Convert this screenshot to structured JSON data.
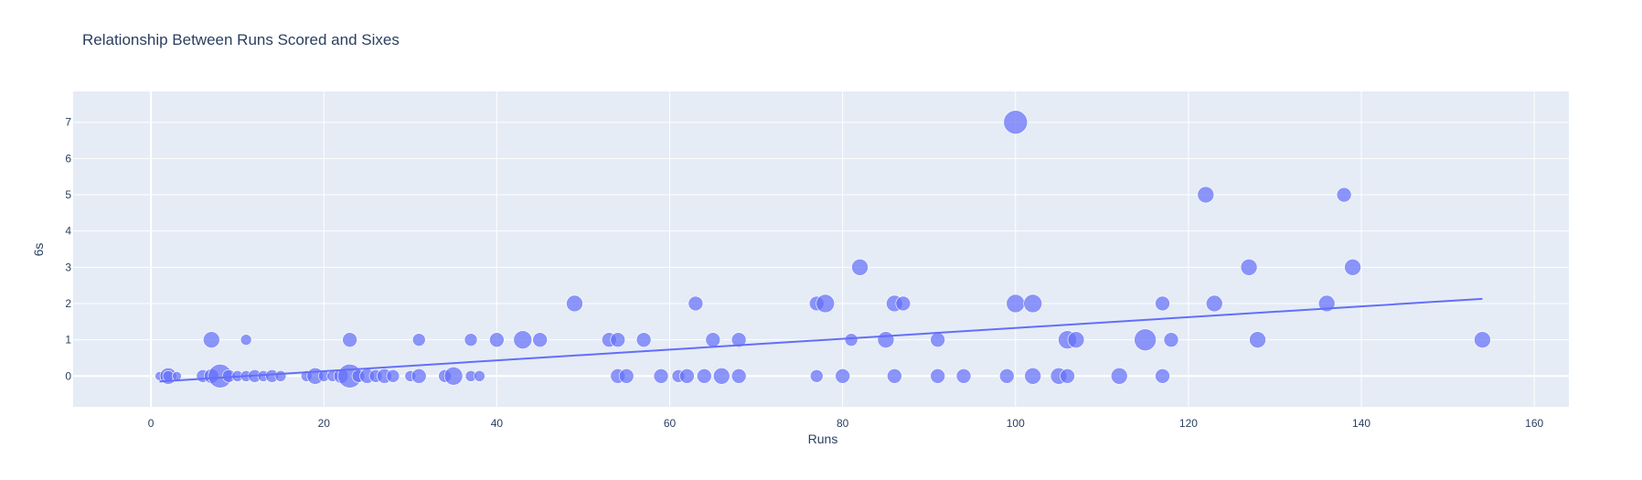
{
  "chart_data": {
    "type": "scatter",
    "title": "Relationship Between Runs Scored and Sixes",
    "xlabel": "Runs",
    "ylabel": "6s",
    "xlim": [
      -9,
      164
    ],
    "ylim": [
      -0.85,
      7.85
    ],
    "x_ticks": [
      0,
      20,
      40,
      60,
      80,
      100,
      120,
      140,
      160
    ],
    "y_ticks": [
      0,
      1,
      2,
      3,
      4,
      5,
      6,
      7
    ],
    "grid": true,
    "colors": {
      "marker": "#636efa",
      "trendline": "#636efa",
      "plot_bg": "#e5ecf6",
      "grid": "#ffffff",
      "text": "#2a3f5f"
    },
    "marker_size_note": "bubble size varies by an unlabeled variable",
    "trendline": {
      "x": [
        1,
        154
      ],
      "y": [
        -0.15,
        2.13
      ]
    },
    "points": [
      {
        "x": 1,
        "y": 0,
        "s": 5
      },
      {
        "x": 2,
        "y": 0,
        "s": 9
      },
      {
        "x": 2,
        "y": 0,
        "s": 6
      },
      {
        "x": 3,
        "y": 0,
        "s": 5
      },
      {
        "x": 6,
        "y": 0,
        "s": 7
      },
      {
        "x": 7,
        "y": 1,
        "s": 9
      },
      {
        "x": 7,
        "y": 0,
        "s": 8
      },
      {
        "x": 8,
        "y": 0,
        "s": 13
      },
      {
        "x": 9,
        "y": 0,
        "s": 7
      },
      {
        "x": 10,
        "y": 0,
        "s": 6
      },
      {
        "x": 11,
        "y": 1,
        "s": 6
      },
      {
        "x": 11,
        "y": 0,
        "s": 6
      },
      {
        "x": 12,
        "y": 0,
        "s": 7
      },
      {
        "x": 13,
        "y": 0,
        "s": 6
      },
      {
        "x": 14,
        "y": 0,
        "s": 7
      },
      {
        "x": 15,
        "y": 0,
        "s": 6
      },
      {
        "x": 18,
        "y": 0,
        "s": 6
      },
      {
        "x": 19,
        "y": 0,
        "s": 9
      },
      {
        "x": 20,
        "y": 0,
        "s": 6
      },
      {
        "x": 21,
        "y": 0,
        "s": 6
      },
      {
        "x": 22,
        "y": 0,
        "s": 8
      },
      {
        "x": 23,
        "y": 1,
        "s": 8
      },
      {
        "x": 23,
        "y": 0,
        "s": 13
      },
      {
        "x": 24,
        "y": 0,
        "s": 7
      },
      {
        "x": 25,
        "y": 0,
        "s": 8
      },
      {
        "x": 26,
        "y": 0,
        "s": 7
      },
      {
        "x": 27,
        "y": 0,
        "s": 8
      },
      {
        "x": 28,
        "y": 0,
        "s": 7
      },
      {
        "x": 30,
        "y": 0,
        "s": 6
      },
      {
        "x": 31,
        "y": 1,
        "s": 7
      },
      {
        "x": 31,
        "y": 0,
        "s": 8
      },
      {
        "x": 34,
        "y": 0,
        "s": 7
      },
      {
        "x": 35,
        "y": 0,
        "s": 10
      },
      {
        "x": 37,
        "y": 1,
        "s": 7
      },
      {
        "x": 37,
        "y": 0,
        "s": 6
      },
      {
        "x": 38,
        "y": 0,
        "s": 6
      },
      {
        "x": 40,
        "y": 1,
        "s": 8
      },
      {
        "x": 43,
        "y": 1,
        "s": 10
      },
      {
        "x": 45,
        "y": 1,
        "s": 8
      },
      {
        "x": 49,
        "y": 2,
        "s": 9
      },
      {
        "x": 53,
        "y": 1,
        "s": 8
      },
      {
        "x": 54,
        "y": 1,
        "s": 8
      },
      {
        "x": 54,
        "y": 0,
        "s": 8
      },
      {
        "x": 55,
        "y": 0,
        "s": 8
      },
      {
        "x": 57,
        "y": 1,
        "s": 8
      },
      {
        "x": 59,
        "y": 0,
        "s": 8
      },
      {
        "x": 61,
        "y": 0,
        "s": 7
      },
      {
        "x": 62,
        "y": 0,
        "s": 8
      },
      {
        "x": 63,
        "y": 2,
        "s": 8
      },
      {
        "x": 64,
        "y": 0,
        "s": 8
      },
      {
        "x": 65,
        "y": 1,
        "s": 8
      },
      {
        "x": 66,
        "y": 0,
        "s": 9
      },
      {
        "x": 68,
        "y": 1,
        "s": 8
      },
      {
        "x": 68,
        "y": 0,
        "s": 8
      },
      {
        "x": 77,
        "y": 2,
        "s": 8
      },
      {
        "x": 77,
        "y": 0,
        "s": 7
      },
      {
        "x": 78,
        "y": 2,
        "s": 10
      },
      {
        "x": 80,
        "y": 0,
        "s": 8
      },
      {
        "x": 81,
        "y": 1,
        "s": 7
      },
      {
        "x": 82,
        "y": 3,
        "s": 9
      },
      {
        "x": 85,
        "y": 1,
        "s": 9
      },
      {
        "x": 86,
        "y": 2,
        "s": 9
      },
      {
        "x": 86,
        "y": 0,
        "s": 8
      },
      {
        "x": 87,
        "y": 2,
        "s": 8
      },
      {
        "x": 91,
        "y": 1,
        "s": 8
      },
      {
        "x": 91,
        "y": 0,
        "s": 8
      },
      {
        "x": 94,
        "y": 0,
        "s": 8
      },
      {
        "x": 99,
        "y": 0,
        "s": 8
      },
      {
        "x": 100,
        "y": 7,
        "s": 13
      },
      {
        "x": 100,
        "y": 2,
        "s": 10
      },
      {
        "x": 102,
        "y": 2,
        "s": 10
      },
      {
        "x": 102,
        "y": 0,
        "s": 9
      },
      {
        "x": 105,
        "y": 0,
        "s": 9
      },
      {
        "x": 106,
        "y": 1,
        "s": 10
      },
      {
        "x": 106,
        "y": 0,
        "s": 8
      },
      {
        "x": 107,
        "y": 1,
        "s": 9
      },
      {
        "x": 112,
        "y": 0,
        "s": 9
      },
      {
        "x": 115,
        "y": 1,
        "s": 12
      },
      {
        "x": 117,
        "y": 2,
        "s": 8
      },
      {
        "x": 117,
        "y": 0,
        "s": 8
      },
      {
        "x": 118,
        "y": 1,
        "s": 8
      },
      {
        "x": 122,
        "y": 5,
        "s": 9
      },
      {
        "x": 123,
        "y": 2,
        "s": 9
      },
      {
        "x": 127,
        "y": 3,
        "s": 9
      },
      {
        "x": 128,
        "y": 1,
        "s": 9
      },
      {
        "x": 136,
        "y": 2,
        "s": 9
      },
      {
        "x": 138,
        "y": 5,
        "s": 8
      },
      {
        "x": 139,
        "y": 3,
        "s": 9
      },
      {
        "x": 154,
        "y": 1,
        "s": 9
      }
    ]
  }
}
